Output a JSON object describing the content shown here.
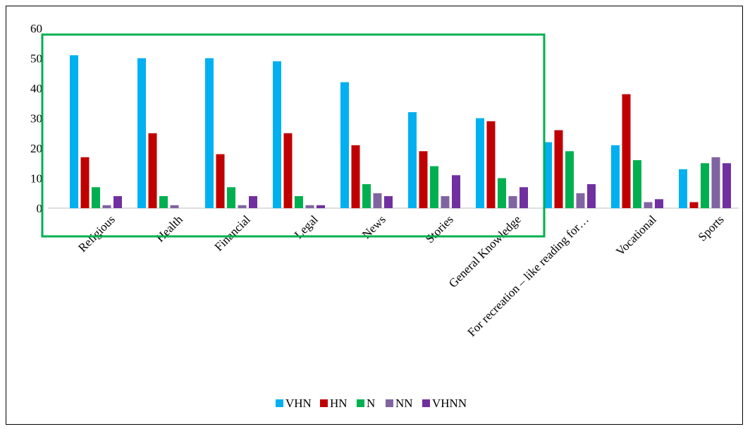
{
  "chart_data": {
    "type": "bar",
    "title": "",
    "xlabel": "",
    "ylabel": "",
    "ylim": [
      0,
      60
    ],
    "yticks": [
      0,
      10,
      20,
      30,
      40,
      50,
      60
    ],
    "grid": false,
    "legend": "bottom",
    "categories": [
      "Religious",
      "Health",
      "Financial",
      "Legal",
      "News",
      "Stories",
      "General Knowledge",
      "For recreation – like reading for…",
      "Vocational",
      "Sports"
    ],
    "series": [
      {
        "name": "VHN",
        "color": "#00b0f0",
        "values": [
          51,
          50,
          50,
          49,
          42,
          32,
          30,
          22,
          21,
          13
        ]
      },
      {
        "name": "HN",
        "color": "#c00000",
        "values": [
          17,
          25,
          18,
          25,
          21,
          19,
          29,
          26,
          38,
          2
        ]
      },
      {
        "name": "N",
        "color": "#00b050",
        "values": [
          7,
          4,
          7,
          4,
          8,
          14,
          10,
          19,
          16,
          15
        ]
      },
      {
        "name": "NN",
        "color": "#8064a2",
        "values": [
          1,
          1,
          1,
          1,
          5,
          4,
          4,
          5,
          2,
          17
        ]
      },
      {
        "name": "VHNN",
        "color": "#7030a0",
        "values": [
          4,
          0,
          4,
          1,
          4,
          11,
          7,
          8,
          3,
          15
        ]
      }
    ],
    "annotation": {
      "shape": "rectangle",
      "color": "#00b050",
      "spans_categories": [
        "Religious",
        "General Knowledge"
      ]
    }
  }
}
